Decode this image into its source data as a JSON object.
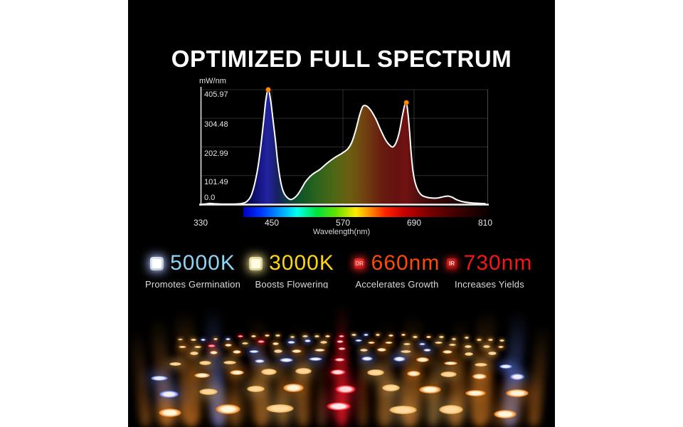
{
  "title": "OPTIMIZED FULL SPECTRUM",
  "chart": {
    "y_axis_title": "mW/nm",
    "x_axis_title": "Wavelength(nm)",
    "y_ticks": [
      "405.97",
      "304.48",
      "202.99",
      "101.49",
      "0.0"
    ],
    "x_ticks": [
      "330",
      "450",
      "570",
      "690",
      "810"
    ]
  },
  "chart_data": {
    "type": "area",
    "title": "",
    "xlabel": "Wavelength(nm)",
    "ylabel": "mW/nm",
    "x_range": [
      330,
      810
    ],
    "y_range": [
      0,
      405.97
    ],
    "x_ticks": [
      330,
      450,
      570,
      690,
      810
    ],
    "y_ticks": [
      405.97,
      304.48,
      202.99,
      101.49,
      0.0
    ],
    "grid": true,
    "fill": "spectral-gradient",
    "line_color": "#ffffff",
    "marker_color": "#ff8a00",
    "markers": [
      [
        444,
        406
      ],
      [
        677,
        360
      ]
    ],
    "series": [
      {
        "name": "spectral power distribution",
        "points": [
          [
            330,
            0
          ],
          [
            338,
            1
          ],
          [
            345,
            3
          ],
          [
            352,
            2
          ],
          [
            362,
            1
          ],
          [
            375,
            0.5
          ],
          [
            390,
            1
          ],
          [
            400,
            3
          ],
          [
            408,
            10
          ],
          [
            416,
            35
          ],
          [
            424,
            100
          ],
          [
            430,
            180
          ],
          [
            436,
            290
          ],
          [
            440,
            370
          ],
          [
            444,
            406
          ],
          [
            448,
            370
          ],
          [
            452,
            300
          ],
          [
            456,
            230
          ],
          [
            460,
            150
          ],
          [
            465,
            80
          ],
          [
            470,
            42
          ],
          [
            476,
            24
          ],
          [
            483,
            17
          ],
          [
            492,
            30
          ],
          [
            500,
            55
          ],
          [
            507,
            80
          ],
          [
            518,
            105
          ],
          [
            531,
            123
          ],
          [
            543,
            145
          ],
          [
            556,
            165
          ],
          [
            568,
            180
          ],
          [
            578,
            196
          ],
          [
            585,
            220
          ],
          [
            592,
            265
          ],
          [
            598,
            315
          ],
          [
            603,
            345
          ],
          [
            607,
            350
          ],
          [
            612,
            345
          ],
          [
            618,
            330
          ],
          [
            626,
            300
          ],
          [
            634,
            262
          ],
          [
            642,
            228
          ],
          [
            650,
            207
          ],
          [
            655,
            204
          ],
          [
            660,
            220
          ],
          [
            665,
            255
          ],
          [
            670,
            310
          ],
          [
            674,
            350
          ],
          [
            677,
            360
          ],
          [
            679,
            335
          ],
          [
            682,
            270
          ],
          [
            685,
            185
          ],
          [
            688,
            120
          ],
          [
            692,
            75
          ],
          [
            697,
            48
          ],
          [
            703,
            32
          ],
          [
            711,
            25
          ],
          [
            720,
            22
          ],
          [
            729,
            22
          ],
          [
            738,
            26
          ],
          [
            747,
            29
          ],
          [
            754,
            25
          ],
          [
            762,
            16
          ],
          [
            772,
            9
          ],
          [
            785,
            5
          ],
          [
            800,
            3
          ],
          [
            810,
            2
          ]
        ]
      }
    ]
  },
  "features": [
    {
      "value": "5000K",
      "label": "Promotes Germination",
      "color": "#8fd4f5",
      "icon": "white-led-chip-icon",
      "icon_text": ""
    },
    {
      "value": "3000K",
      "label": "Boosts Flowering",
      "color": "#ffd60a",
      "icon": "warm-white-led-chip-icon",
      "icon_text": ""
    },
    {
      "value": "660nm",
      "label": "Accelerates Growth",
      "color": "#ff4a00",
      "icon": "deep-red-led-chip-icon",
      "icon_text": "DR"
    },
    {
      "value": "730nm",
      "label": "Increases Yields",
      "color": "#f51616",
      "icon": "infrared-led-chip-icon",
      "icon_text": "IR"
    }
  ],
  "led_photo": {
    "description": "LED grow light board glowing in the dark: perspective rows of warm-white, cool-white and red diodes with volumetric light beams",
    "colors": {
      "warm": "#ff9632",
      "warm2": "#ffc469",
      "cool": "#6e8cff",
      "red": "#ff1e2d",
      "core": "#fff6dc",
      "cool_core": "#f2f6ff"
    }
  }
}
